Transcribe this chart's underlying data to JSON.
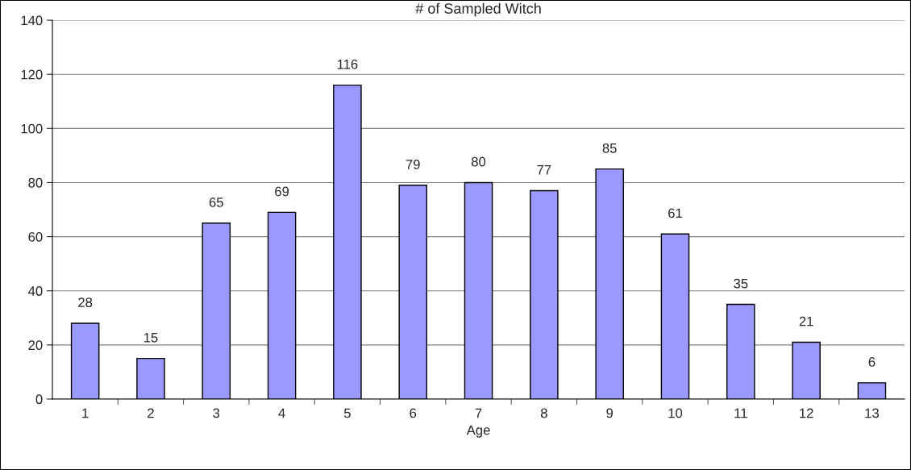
{
  "chart_data": {
    "type": "bar",
    "title": "# of Sampled Witch",
    "xlabel": "Age",
    "categories": [
      "1",
      "2",
      "3",
      "4",
      "5",
      "6",
      "7",
      "8",
      "9",
      "10",
      "11",
      "12",
      "13"
    ],
    "values": [
      28,
      15,
      65,
      69,
      116,
      79,
      80,
      77,
      85,
      61,
      35,
      21,
      6
    ],
    "color": "#9999ff",
    "ylim": [
      0,
      140
    ],
    "yticks": [
      0,
      20,
      40,
      60,
      80,
      100,
      120,
      140
    ],
    "grid": "y",
    "data_labels": true,
    "legend": false
  }
}
